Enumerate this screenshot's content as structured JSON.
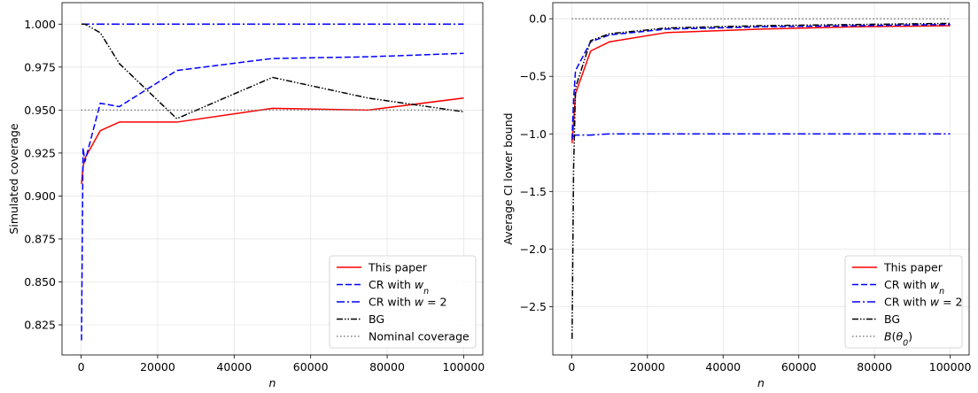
{
  "chart_data": [
    {
      "type": "line",
      "title": "",
      "xlabel": "n",
      "ylabel": "Simulated coverage",
      "xlim": [
        -5000,
        105000
      ],
      "ylim": [
        0.8075,
        1.0125
      ],
      "xticks": [
        0,
        20000,
        40000,
        60000,
        80000,
        100000
      ],
      "xtick_labels": [
        "0",
        "20000",
        "40000",
        "60000",
        "80000",
        "100000"
      ],
      "yticks": [
        0.825,
        0.85,
        0.875,
        0.9,
        0.925,
        0.95,
        0.975,
        1.0
      ],
      "ytick_labels": [
        "0.825",
        "0.850",
        "0.875",
        "0.900",
        "0.925",
        "0.950",
        "0.975",
        "1.000"
      ],
      "grid": true,
      "legend_position": "lower-right",
      "series": [
        {
          "name": "This paper",
          "color": "#ff0000",
          "dash": "solid",
          "x": [
            100,
            500,
            1000,
            5000,
            10000,
            25000,
            50000,
            75000,
            100000
          ],
          "y": [
            0.907,
            0.917,
            0.922,
            0.938,
            0.943,
            0.943,
            0.951,
            0.95,
            0.957
          ]
        },
        {
          "name": "CR with $w_n$",
          "color": "#0000ff",
          "dash": "dashed",
          "x": [
            100,
            500,
            1000,
            5000,
            10000,
            25000,
            50000,
            75000,
            100000
          ],
          "y": [
            0.816,
            0.928,
            0.92,
            0.954,
            0.952,
            0.973,
            0.98,
            0.981,
            0.983
          ]
        },
        {
          "name": "CR with $w = 2$",
          "color": "#0000ff",
          "dash": "dashdot",
          "x": [
            100,
            500,
            1000,
            5000,
            10000,
            25000,
            50000,
            75000,
            100000
          ],
          "y": [
            1.0,
            1.0,
            1.0,
            1.0,
            1.0,
            1.0,
            1.0,
            1.0,
            1.0
          ]
        },
        {
          "name": "BG",
          "color": "#000000",
          "dash": "dashdotdot",
          "x": [
            100,
            500,
            1000,
            5000,
            10000,
            25000,
            50000,
            75000,
            100000
          ],
          "y": [
            1.0,
            1.0,
            1.0,
            0.995,
            0.977,
            0.945,
            0.969,
            0.957,
            0.949
          ]
        },
        {
          "name": "Nominal coverage",
          "color": "#808080",
          "dash": "dotted",
          "x": [
            0,
            100000
          ],
          "y": [
            0.95,
            0.95
          ]
        }
      ],
      "legend": [
        "This paper",
        "CR with $w_n$",
        "CR with $w = 2$",
        "BG",
        "Nominal coverage"
      ]
    },
    {
      "type": "line",
      "title": "",
      "xlabel": "n",
      "ylabel": "Average CI lower bound",
      "xlim": [
        -5000,
        105000
      ],
      "ylim": [
        -2.92,
        0.14
      ],
      "xticks": [
        0,
        20000,
        40000,
        60000,
        80000,
        100000
      ],
      "xtick_labels": [
        "0",
        "20000",
        "40000",
        "60000",
        "80000",
        "100000"
      ],
      "yticks": [
        -2.5,
        -2.0,
        -1.5,
        -1.0,
        -0.5,
        0.0
      ],
      "ytick_labels": [
        "−2.5",
        "−2.0",
        "−1.5",
        "−1.0",
        "−0.5",
        "0.0"
      ],
      "grid": true,
      "legend_position": "lower-right",
      "series": [
        {
          "name": "This paper",
          "color": "#ff0000",
          "dash": "solid",
          "x": [
            100,
            500,
            1000,
            5000,
            10000,
            25000,
            50000,
            75000,
            100000
          ],
          "y": [
            -1.08,
            -0.9,
            -0.65,
            -0.28,
            -0.2,
            -0.12,
            -0.09,
            -0.07,
            -0.06
          ]
        },
        {
          "name": "CR with $w_n$",
          "color": "#0000ff",
          "dash": "dashed",
          "x": [
            100,
            500,
            1000,
            5000,
            10000,
            25000,
            50000,
            75000,
            100000
          ],
          "y": [
            -1.05,
            -0.7,
            -0.45,
            -0.2,
            -0.14,
            -0.09,
            -0.07,
            -0.06,
            -0.05
          ]
        },
        {
          "name": "CR with $w = 2$",
          "color": "#0000ff",
          "dash": "dashdot",
          "x": [
            100,
            500,
            1000,
            5000,
            10000,
            25000,
            50000,
            75000,
            100000
          ],
          "y": [
            -1.02,
            -1.02,
            -1.01,
            -1.01,
            -1.0,
            -1.0,
            -1.0,
            -1.0,
            -1.0
          ]
        },
        {
          "name": "BG",
          "color": "#000000",
          "dash": "dashdotdot",
          "x": [
            100,
            500,
            1000,
            5000,
            10000,
            25000,
            50000,
            75000,
            100000
          ],
          "y": [
            -2.78,
            -1.3,
            -0.6,
            -0.19,
            -0.13,
            -0.08,
            -0.06,
            -0.05,
            -0.04
          ]
        },
        {
          "name": "$B(\\theta_0)$",
          "color": "#808080",
          "dash": "dotted",
          "x": [
            0,
            100000
          ],
          "y": [
            0.0,
            0.0
          ]
        }
      ],
      "legend": [
        "This paper",
        "CR with $w_n$",
        "CR with $w = 2$",
        "BG",
        "$B(\\theta_0)$"
      ]
    }
  ]
}
